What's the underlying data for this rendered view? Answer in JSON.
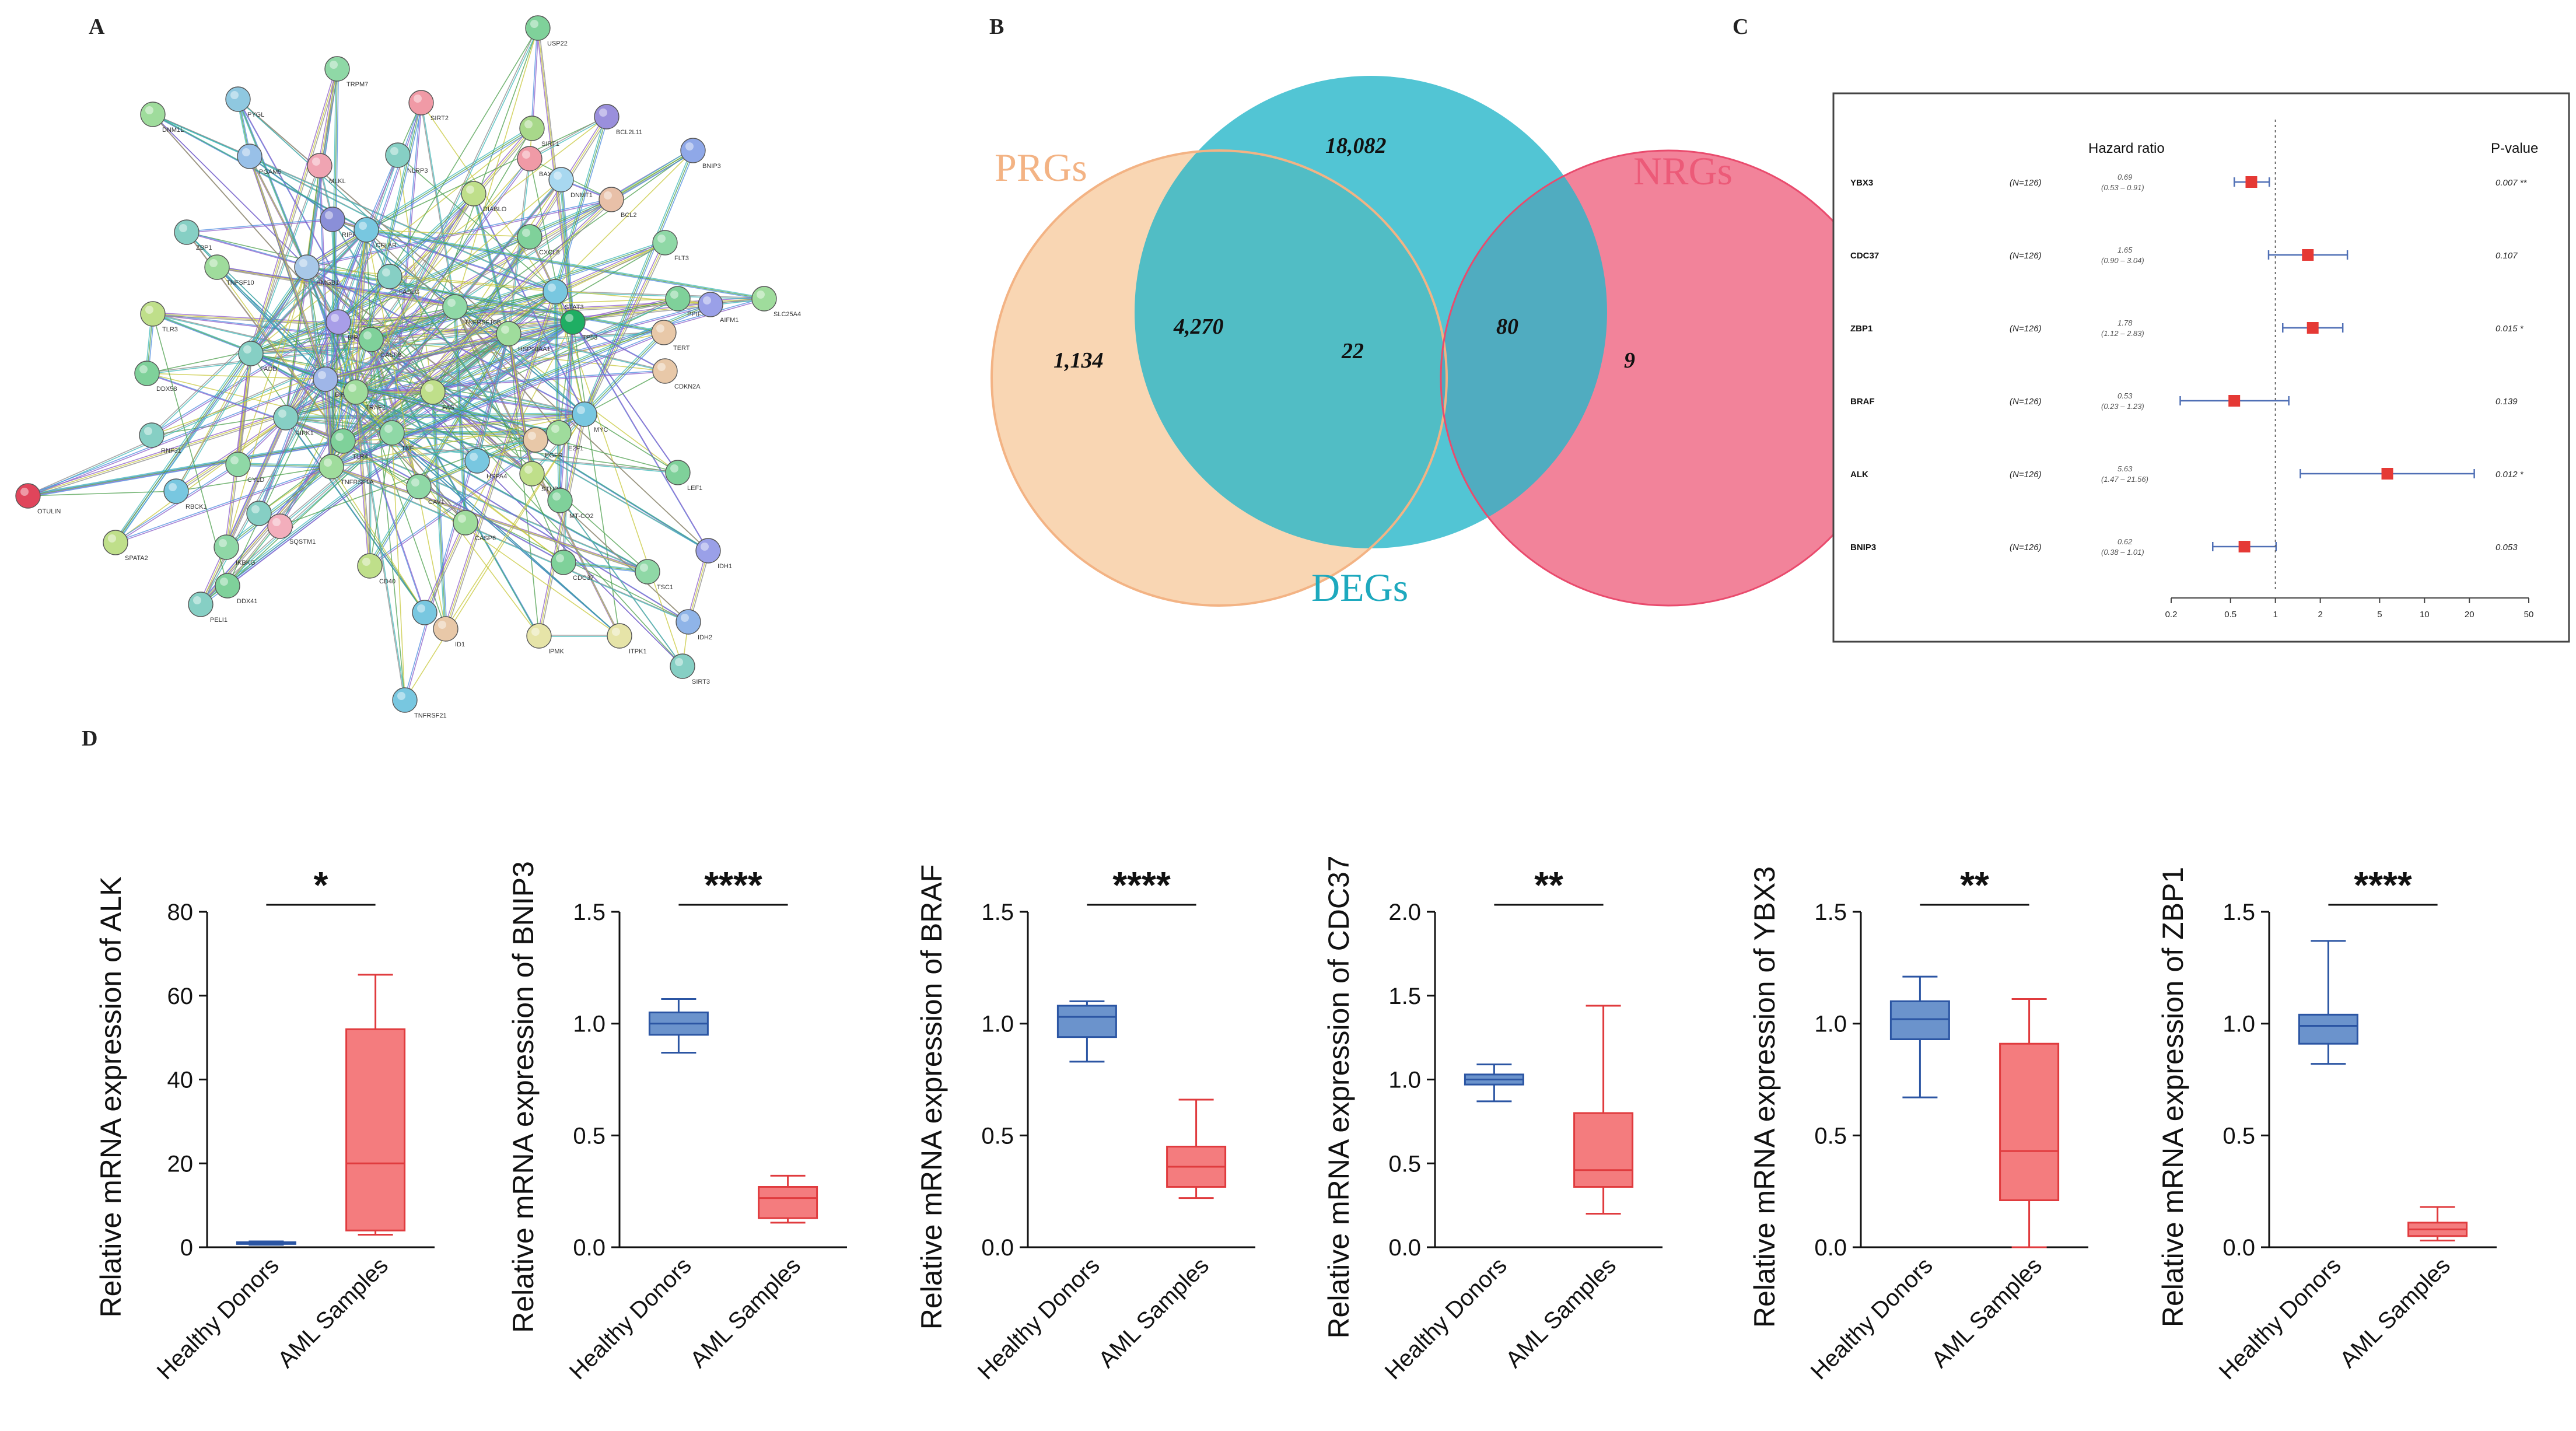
{
  "panel_labels": {
    "a": "A",
    "b": "B",
    "c": "C",
    "d": "D"
  },
  "colors": {
    "healthy_fill": "#6b93cc",
    "healthy_stroke": "#2b55a3",
    "aml_fill": "#f47c7e",
    "aml_stroke": "#e03b3e",
    "prg_fill": "#f8cfa6",
    "deg_fill": "#27b6c9",
    "nrg_fill": "#f06d88",
    "forest_marker": "#e53935",
    "forest_ci": "#4f6fb5"
  },
  "ppi": {
    "nodes": [
      {
        "id": "USP22"
      },
      {
        "id": "TRPM7"
      },
      {
        "id": "DNM1L"
      },
      {
        "id": "PYGL"
      },
      {
        "id": "SIRT2"
      },
      {
        "id": "SIRT1"
      },
      {
        "id": "BCL2L11"
      },
      {
        "id": "BNIP3"
      },
      {
        "id": "PGAM5"
      },
      {
        "id": "MLKL"
      },
      {
        "id": "NLRP3"
      },
      {
        "id": "BAX"
      },
      {
        "id": "DNMT1"
      },
      {
        "id": "BCL2"
      },
      {
        "id": "RIPK3"
      },
      {
        "id": "DIABLO"
      },
      {
        "id": "ZBP1"
      },
      {
        "id": "CFLAR"
      },
      {
        "id": "CXCL8"
      },
      {
        "id": "FLT3"
      },
      {
        "id": "TNFSF10"
      },
      {
        "id": "HMGB1"
      },
      {
        "id": "FASLG"
      },
      {
        "id": "STAT3"
      },
      {
        "id": "PPIF"
      },
      {
        "id": "AIFM1"
      },
      {
        "id": "SLC25A4"
      },
      {
        "id": "TLR3"
      },
      {
        "id": "TP53"
      },
      {
        "id": "BIRC2"
      },
      {
        "id": "CASP8"
      },
      {
        "id": "TNFRSF10B"
      },
      {
        "id": "HSP90AA1"
      },
      {
        "id": "TERT"
      },
      {
        "id": "FADD"
      },
      {
        "id": "CDKN2A"
      },
      {
        "id": "DDX58"
      },
      {
        "id": "BIRC3"
      },
      {
        "id": "TRAF2"
      },
      {
        "id": "FAS"
      },
      {
        "id": "RIPK1"
      },
      {
        "id": "MYC"
      },
      {
        "id": "TLR4"
      },
      {
        "id": "TNF"
      },
      {
        "id": "E2F1"
      },
      {
        "id": "EGFR"
      },
      {
        "id": "RNF31"
      },
      {
        "id": "HSPA4"
      },
      {
        "id": "LEF1"
      },
      {
        "id": "CYLD"
      },
      {
        "id": "TNFRSF1A"
      },
      {
        "id": "STUB1"
      },
      {
        "id": "OTULIN"
      },
      {
        "id": "RBCK1"
      },
      {
        "id": "MT-CO2"
      },
      {
        "id": "CAV1"
      },
      {
        "id": "CASP6"
      },
      {
        "id": "SPATA2"
      },
      {
        "id": "MAP3K7"
      },
      {
        "id": "SQSTM1"
      },
      {
        "id": "CDC37"
      },
      {
        "id": "TSC1"
      },
      {
        "id": "IDH1"
      },
      {
        "id": "CD40"
      },
      {
        "id": "PELI1"
      },
      {
        "id": "APP"
      },
      {
        "id": "ID1"
      },
      {
        "id": "IPMK"
      },
      {
        "id": "ITPK1"
      },
      {
        "id": "IDH2"
      },
      {
        "id": "SIRT3"
      },
      {
        "id": "TNFRSF21"
      },
      {
        "id": "DDX41"
      },
      {
        "id": "IKBKG"
      }
    ]
  },
  "venn": {
    "sets": [
      {
        "name": "PRGs",
        "color": "#f3b384"
      },
      {
        "name": "DEGs",
        "color": "#1ea9be"
      },
      {
        "name": "NRGs",
        "color": "#ec5a78"
      }
    ],
    "regions": {
      "prg_only": "1,134",
      "deg_only": "18,082",
      "nrg_only": "9",
      "prg_deg": "4,270",
      "deg_nrg": "80",
      "all_three": "22"
    }
  },
  "forest": {
    "header_hr": "Hazard ratio",
    "header_p": "P-value",
    "axis_ticks": [
      "0.2",
      "0.5",
      "1",
      "2",
      "5",
      "10",
      "20",
      "50"
    ],
    "axis_tick_values": [
      0.2,
      0.5,
      1,
      2,
      5,
      10,
      20,
      50
    ],
    "rows": [
      {
        "gene": "YBX3",
        "n": "(N=126)",
        "hr_text": "0.69",
        "ci_text": "(0.53 – 0.91)",
        "p_text": "0.007 **",
        "hr": 0.69,
        "lo": 0.53,
        "hi": 0.91
      },
      {
        "gene": "CDC37",
        "n": "(N=126)",
        "hr_text": "1.65",
        "ci_text": "(0.90 – 3.04)",
        "p_text": "0.107",
        "hr": 1.65,
        "lo": 0.9,
        "hi": 3.04
      },
      {
        "gene": "ZBP1",
        "n": "(N=126)",
        "hr_text": "1.78",
        "ci_text": "(1.12 – 2.83)",
        "p_text": "0.015 *",
        "hr": 1.78,
        "lo": 1.12,
        "hi": 2.83
      },
      {
        "gene": "BRAF",
        "n": "(N=126)",
        "hr_text": "0.53",
        "ci_text": "(0.23 – 1.23)",
        "p_text": "0.139",
        "hr": 0.53,
        "lo": 0.23,
        "hi": 1.23
      },
      {
        "gene": "ALK",
        "n": "(N=126)",
        "hr_text": "5.63",
        "ci_text": "(1.47 – 21.56)",
        "p_text": "0.012 *",
        "hr": 5.63,
        "lo": 1.47,
        "hi": 21.56
      },
      {
        "gene": "BNIP3",
        "n": "(N=126)",
        "hr_text": "0.62",
        "ci_text": "(0.38 – 1.01)",
        "p_text": "0.053",
        "hr": 0.62,
        "lo": 0.38,
        "hi": 1.01
      }
    ]
  },
  "chart_data": [
    {
      "type": "box",
      "ylabel": "Relative mRNA expression of ALK",
      "ylim": [
        0,
        80
      ],
      "yticks": [
        0,
        20,
        40,
        60,
        80
      ],
      "ytick_labels": [
        "0",
        "20",
        "40",
        "60",
        "80"
      ],
      "categories": [
        "Healthy Donors",
        "AML Samples"
      ],
      "significance": "*",
      "series": [
        {
          "name": "Healthy Donors",
          "min": 0.6,
          "q1": 0.8,
          "median": 1.0,
          "q3": 1.2,
          "max": 1.4
        },
        {
          "name": "AML Samples",
          "min": 3,
          "q1": 4,
          "median": 20,
          "q3": 52,
          "max": 65
        }
      ]
    },
    {
      "type": "box",
      "ylabel": "Relative mRNA expression of  BNIP3",
      "ylim": [
        0,
        1.5
      ],
      "yticks": [
        0,
        0.5,
        1.0,
        1.5
      ],
      "ytick_labels": [
        "0.0",
        "0.5",
        "1.0",
        "1.5"
      ],
      "categories": [
        "Healthy Donors",
        "AML Samples"
      ],
      "significance": "****",
      "series": [
        {
          "name": "Healthy Donors",
          "min": 0.87,
          "q1": 0.95,
          "median": 1.0,
          "q3": 1.05,
          "max": 1.11
        },
        {
          "name": "AML Samples",
          "min": 0.11,
          "q1": 0.13,
          "median": 0.22,
          "q3": 0.27,
          "max": 0.32
        }
      ]
    },
    {
      "type": "box",
      "ylabel": "Relative mRNA expression of  BRAF",
      "ylim": [
        0,
        1.5
      ],
      "yticks": [
        0,
        0.5,
        1.0,
        1.5
      ],
      "ytick_labels": [
        "0.0",
        "0.5",
        "1.0",
        "1.5"
      ],
      "categories": [
        "Healthy Donors",
        "AML Samples"
      ],
      "significance": "****",
      "series": [
        {
          "name": "Healthy Donors",
          "min": 0.83,
          "q1": 0.94,
          "median": 1.03,
          "q3": 1.08,
          "max": 1.1
        },
        {
          "name": "AML Samples",
          "min": 0.22,
          "q1": 0.27,
          "median": 0.36,
          "q3": 0.45,
          "max": 0.66
        }
      ]
    },
    {
      "type": "box",
      "ylabel": "Relative mRNA expression of  CDC37",
      "ylim": [
        0,
        2.0
      ],
      "yticks": [
        0,
        0.5,
        1.0,
        1.5,
        2.0
      ],
      "ytick_labels": [
        "0.0",
        "0.5",
        "1.0",
        "1.5",
        "2.0"
      ],
      "categories": [
        "Healthy Donors",
        "AML Samples"
      ],
      "significance": "**",
      "series": [
        {
          "name": "Healthy Donors",
          "min": 0.87,
          "q1": 0.97,
          "median": 1.0,
          "q3": 1.03,
          "max": 1.09
        },
        {
          "name": "AML Samples",
          "min": 0.2,
          "q1": 0.36,
          "median": 0.46,
          "q3": 0.8,
          "max": 1.44
        }
      ]
    },
    {
      "type": "box",
      "ylabel": "Relative mRNA expression of YBX3",
      "ylim": [
        0,
        1.5
      ],
      "yticks": [
        0,
        0.5,
        1.0,
        1.5
      ],
      "ytick_labels": [
        "0.0",
        "0.5",
        "1.0",
        "1.5"
      ],
      "categories": [
        "Healthy Donors",
        "AML Samples"
      ],
      "significance": "**",
      "series": [
        {
          "name": "Healthy Donors",
          "min": 0.67,
          "q1": 0.93,
          "median": 1.02,
          "q3": 1.1,
          "max": 1.21
        },
        {
          "name": "AML Samples",
          "min": 0.0,
          "q1": 0.21,
          "median": 0.43,
          "q3": 0.91,
          "max": 1.11
        }
      ]
    },
    {
      "type": "box",
      "ylabel": "Relative mRNA expression of  ZBP1",
      "ylim": [
        0,
        1.5
      ],
      "yticks": [
        0,
        0.5,
        1.0,
        1.5
      ],
      "ytick_labels": [
        "0.0",
        "0.5",
        "1.0",
        "1.5"
      ],
      "categories": [
        "Healthy Donors",
        "AML Samples"
      ],
      "significance": "****",
      "series": [
        {
          "name": "Healthy Donors",
          "min": 0.82,
          "q1": 0.91,
          "median": 0.99,
          "q3": 1.04,
          "max": 1.37
        },
        {
          "name": "AML Samples",
          "min": 0.03,
          "q1": 0.05,
          "median": 0.08,
          "q3": 0.11,
          "max": 0.18
        }
      ]
    }
  ]
}
